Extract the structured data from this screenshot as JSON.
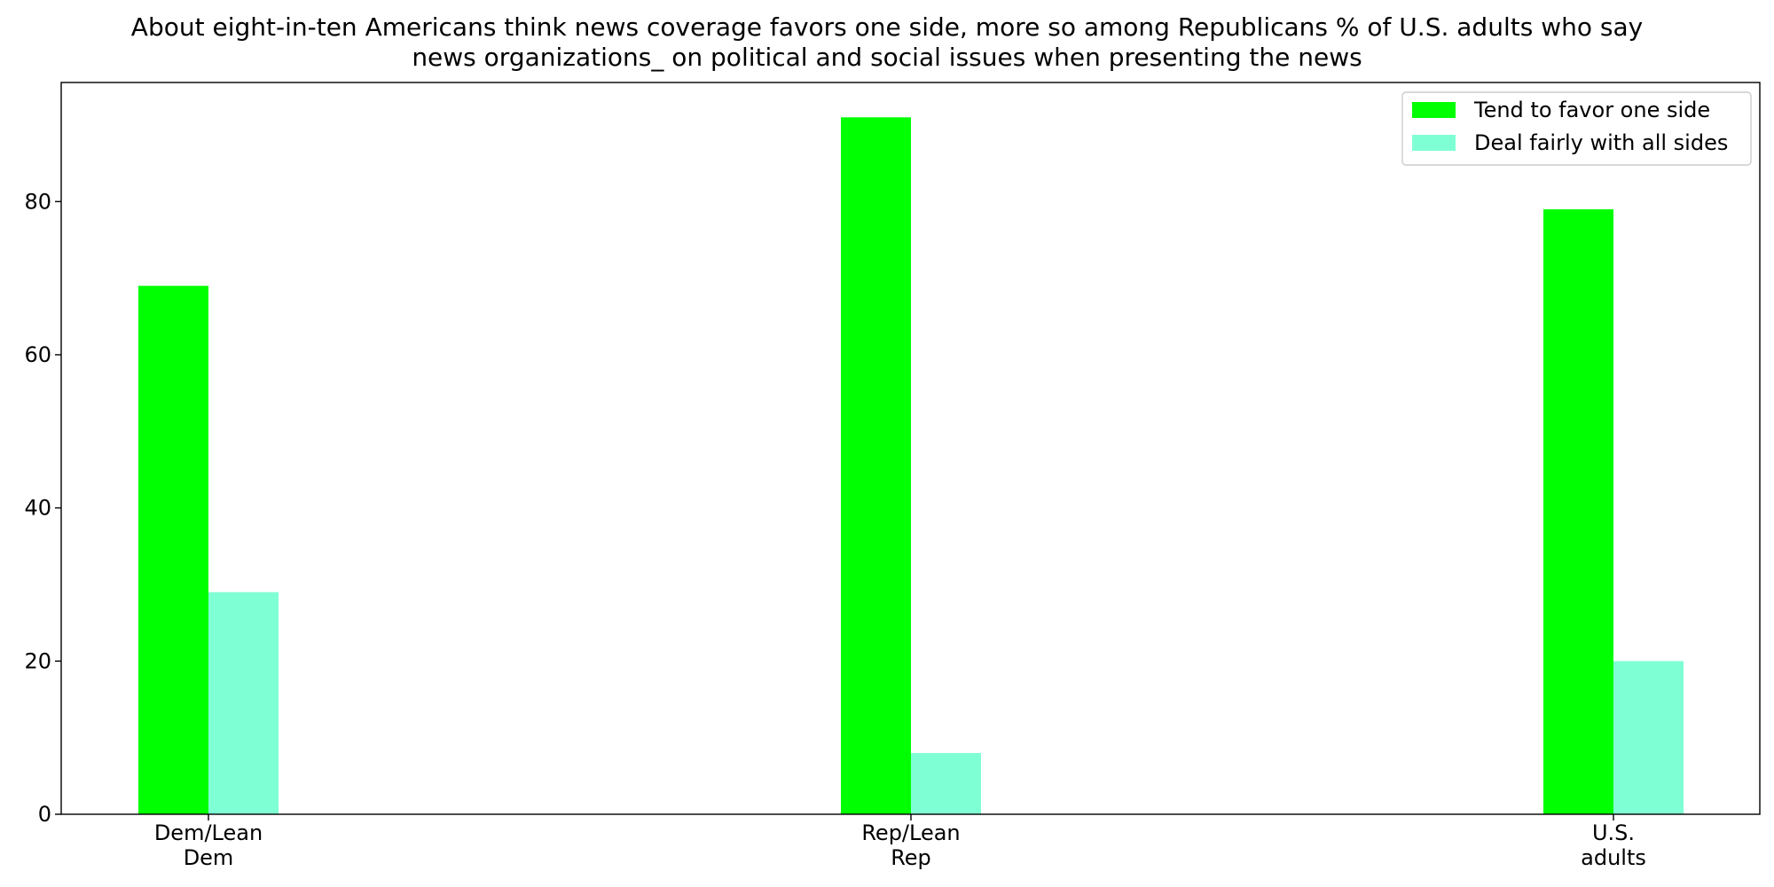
{
  "chart_data": {
    "type": "bar",
    "title_lines": [
      "About eight-in-ten Americans think news coverage favors one side, more so among Republicans % of U.S. adults who say",
      "news organizations_ on political and social issues when presenting the news"
    ],
    "categories": [
      [
        "Dem/Lean",
        "Dem"
      ],
      [
        "Rep/Lean",
        "Rep"
      ],
      [
        "U.S.",
        "adults"
      ]
    ],
    "series": [
      {
        "name": "Tend to favor one side",
        "values": [
          69,
          91,
          79
        ],
        "color": "#00ff00"
      },
      {
        "name": "Deal fairly with all sides",
        "values": [
          29,
          8,
          20
        ],
        "color": "#7fffd4"
      }
    ],
    "xlabel": "",
    "ylabel": "",
    "ylim": [
      0,
      95.55
    ],
    "yticks": [
      0,
      20,
      40,
      60,
      80
    ],
    "grid": false,
    "legend_position": "top-right"
  }
}
